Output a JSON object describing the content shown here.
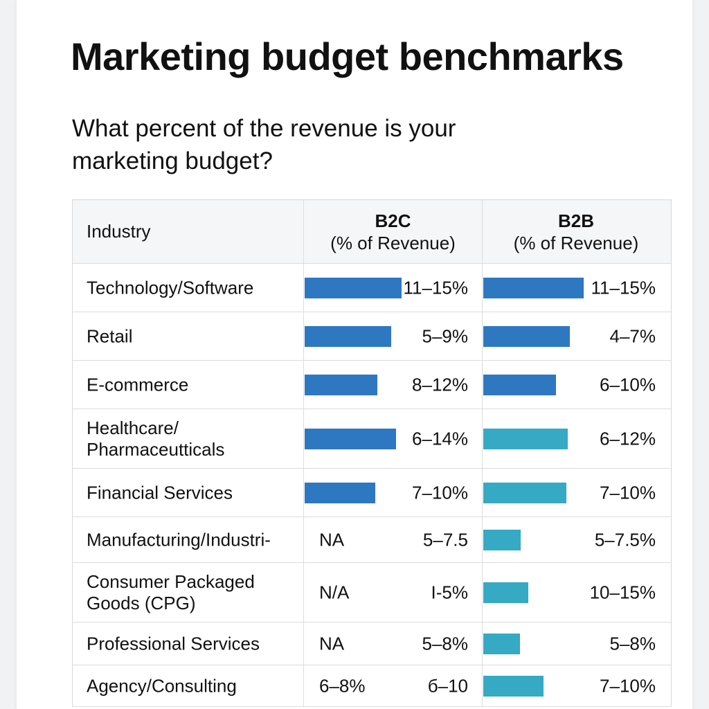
{
  "colors": {
    "dark_blue_bar": "#2e78c2",
    "teal_bar": "#36a9c4",
    "header_bg": "#f5f6f7",
    "grid_line": "#dcdcdc"
  },
  "title": "Marketing budget benchmarks",
  "subtitle": "What percent of the revenue is your marketing budget?",
  "table": {
    "header": {
      "industry": "Industry",
      "b2c_main": "B2C",
      "b2c_sub": "(% of Revenue)",
      "b2b_main": "B2B",
      "b2b_sub": "(% of Revenue)"
    }
  },
  "chart_data": {
    "type": "table",
    "title": "Marketing budget benchmarks",
    "subtitle": "What percent of the revenue is your marketing budget?",
    "columns": [
      "Industry",
      "B2C (% of Revenue)",
      "B2B (% of Revenue)"
    ],
    "bar_scale_max": 15,
    "rows": [
      {
        "industry": "Technology/Software",
        "b2c": {
          "label": "11–15%",
          "bar_value": 14,
          "color": "#2e78c2"
        },
        "b2b": {
          "label": "11–15%",
          "bar_value": 14.5,
          "color": "#2e78c2"
        }
      },
      {
        "industry": "Retail",
        "b2c": {
          "label": "5–9%",
          "bar_value": 12.5,
          "color": "#2e78c2"
        },
        "b2b": {
          "label": "4–7%",
          "bar_value": 12.5,
          "color": "#2e78c2"
        }
      },
      {
        "industry": "E-commerce",
        "b2c": {
          "label": "8–12%",
          "bar_value": 10.5,
          "color": "#2e78c2"
        },
        "b2b": {
          "label": "6–10%",
          "bar_value": 10.5,
          "color": "#2e78c2"
        }
      },
      {
        "industry": "Healthcare/\nPharmaceutticals",
        "b2c": {
          "label": "6–14%",
          "bar_value": 13.2,
          "color": "#2e78c2"
        },
        "b2b": {
          "label": "6–12%",
          "bar_value": 12.2,
          "color": "#36a9c4"
        }
      },
      {
        "industry": "Financial Services",
        "b2c": {
          "label": "7–10%",
          "bar_value": 10.2,
          "color": "#2e78c2"
        },
        "b2b": {
          "label": "7–10%",
          "bar_value": 12,
          "color": "#36a9c4"
        }
      },
      {
        "industry": "Manufacturing/Industri-",
        "b2c": {
          "label": "5–7.5",
          "na_text": "NA"
        },
        "b2b": {
          "label": "5–7.5%",
          "bar_value": 5.4,
          "color": "#36a9c4"
        }
      },
      {
        "industry": "Consumer Packaged\nGoods (CPG)",
        "b2c": {
          "label": "I-5%",
          "na_text": "N/A"
        },
        "b2b": {
          "label": "10–15%",
          "bar_value": 6.5,
          "color": "#36a9c4"
        }
      },
      {
        "industry": "Professional Services",
        "b2c": {
          "label": "5–8%",
          "na_text": "NA"
        },
        "b2b": {
          "label": "5–8%",
          "bar_value": 5.3,
          "color": "#36a9c4"
        }
      },
      {
        "industry": "Agency/Consulting",
        "b2c": {
          "label": "б–10",
          "na_text": "6–8%"
        },
        "b2b": {
          "label": "7–10%",
          "bar_value": 8.7,
          "color": "#36a9c4"
        }
      }
    ]
  }
}
